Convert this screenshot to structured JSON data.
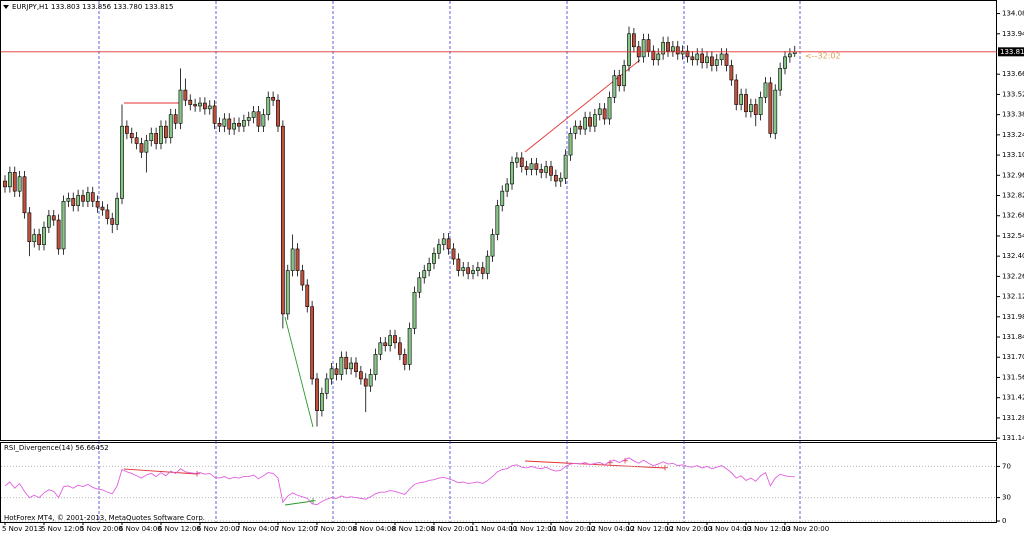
{
  "header": "EURJPY,H1  133.803 133.856 133.780 133.815",
  "timer": "<--32:02",
  "footer": "HotForex MT4, © 2001-2013, MetaQuotes Software Corp.",
  "chart_data": {
    "type": "candlestick",
    "open": [
      132.92,
      132.88,
      132.98,
      132.85,
      132.95,
      132.7,
      132.5,
      132.55,
      132.48,
      132.6,
      132.68,
      132.65,
      132.45,
      132.78,
      132.8,
      132.75,
      132.82,
      132.78,
      132.84,
      132.78,
      132.74,
      132.72,
      132.66,
      132.62,
      132.8,
      133.3,
      133.25,
      133.22,
      133.18,
      133.12,
      133.2,
      133.25,
      133.18,
      133.3,
      133.22,
      133.38,
      133.32,
      133.55,
      133.48,
      133.45,
      133.44,
      133.46,
      133.42,
      133.44,
      133.32,
      133.3,
      133.35,
      133.28,
      133.32,
      133.3,
      133.34,
      133.36,
      133.4,
      133.3,
      133.38,
      133.5,
      133.48,
      133.3,
      132.0,
      132.3,
      132.45,
      132.3,
      132.2,
      132.05,
      131.55,
      131.33,
      131.45,
      131.55,
      131.62,
      131.58,
      131.7,
      131.62,
      131.66,
      131.6,
      131.55,
      131.5,
      131.58,
      131.72,
      131.8,
      131.78,
      131.85,
      131.8,
      131.72,
      131.65,
      131.9,
      132.15,
      132.25,
      132.3,
      132.35,
      132.42,
      132.48,
      132.52,
      132.45,
      132.38,
      132.3,
      132.32,
      132.28,
      132.3,
      132.32,
      132.28,
      132.4,
      132.55,
      132.75,
      132.85,
      132.9,
      133.05,
      133.08,
      133.02,
      133.0,
      133.04,
      133.0,
      132.98,
      133.02,
      132.96,
      132.92,
      132.94,
      133.1,
      133.25,
      133.3,
      133.28,
      133.36,
      133.3,
      133.38,
      133.42,
      133.35,
      133.5,
      133.65,
      133.58,
      133.72,
      133.94,
      133.85,
      133.78,
      133.9,
      133.82,
      133.76,
      133.8,
      133.88,
      133.82,
      133.85,
      133.8,
      133.82,
      133.78,
      133.76,
      133.8,
      133.74,
      133.78,
      133.72,
      133.76,
      133.8,
      133.72,
      133.62,
      133.45,
      133.52,
      133.4,
      133.45,
      133.38,
      133.5,
      133.6,
      133.25,
      133.55,
      133.7,
      133.78,
      133.803
    ],
    "high": [
      132.96,
      133.02,
      133.02,
      132.99,
      132.99,
      132.74,
      132.59,
      132.59,
      132.64,
      132.72,
      132.72,
      132.69,
      132.82,
      132.84,
      132.84,
      132.86,
      132.86,
      132.88,
      132.88,
      132.82,
      132.78,
      132.76,
      132.7,
      132.84,
      133.45,
      133.34,
      133.29,
      133.26,
      133.22,
      133.24,
      133.29,
      133.29,
      133.34,
      133.34,
      133.42,
      133.42,
      133.7,
      133.63,
      133.52,
      133.49,
      133.5,
      133.5,
      133.48,
      133.48,
      133.36,
      133.39,
      133.39,
      133.36,
      133.36,
      133.38,
      133.4,
      133.44,
      133.44,
      133.42,
      133.54,
      133.54,
      133.52,
      133.34,
      132.34,
      132.55,
      132.49,
      132.34,
      132.24,
      132.09,
      131.59,
      131.49,
      131.59,
      131.66,
      131.66,
      131.74,
      131.74,
      131.7,
      131.7,
      131.64,
      131.59,
      131.62,
      131.76,
      131.84,
      131.84,
      131.89,
      131.89,
      131.84,
      131.76,
      131.94,
      132.19,
      132.29,
      132.34,
      132.39,
      132.46,
      132.52,
      132.56,
      132.56,
      132.49,
      132.42,
      132.36,
      132.36,
      132.34,
      132.36,
      132.36,
      132.44,
      132.59,
      132.79,
      132.89,
      132.94,
      133.09,
      133.12,
      133.12,
      133.06,
      133.08,
      133.08,
      133.04,
      133.06,
      133.06,
      133.0,
      132.98,
      133.14,
      133.29,
      133.34,
      133.34,
      133.4,
      133.4,
      133.42,
      133.46,
      133.46,
      133.54,
      133.69,
      133.69,
      133.76,
      133.99,
      133.98,
      133.89,
      133.94,
      133.94,
      133.86,
      133.84,
      133.92,
      133.92,
      133.89,
      133.89,
      133.86,
      133.86,
      133.82,
      133.84,
      133.84,
      133.82,
      133.82,
      133.8,
      133.84,
      133.84,
      133.76,
      133.66,
      133.56,
      133.56,
      133.49,
      133.49,
      133.54,
      133.64,
      133.64,
      133.59,
      133.74,
      133.82,
      133.84,
      133.856
    ],
    "low": [
      132.84,
      132.84,
      132.81,
      132.81,
      132.66,
      132.4,
      132.46,
      132.44,
      132.44,
      132.56,
      132.61,
      132.41,
      132.41,
      132.74,
      132.71,
      132.71,
      132.74,
      132.74,
      132.74,
      132.7,
      132.68,
      132.62,
      132.56,
      132.58,
      132.76,
      133.21,
      133.18,
      133.14,
      133.08,
      132.98,
      133.16,
      133.14,
      133.14,
      133.18,
      133.18,
      133.28,
      133.28,
      133.44,
      133.41,
      133.4,
      133.4,
      133.38,
      133.38,
      133.28,
      133.26,
      133.26,
      133.24,
      133.24,
      133.26,
      133.26,
      133.3,
      133.32,
      133.26,
      133.26,
      133.34,
      133.44,
      133.26,
      131.9,
      131.96,
      132.26,
      132.26,
      132.16,
      132.01,
      131.51,
      131.22,
      131.29,
      131.41,
      131.51,
      131.54,
      131.54,
      131.58,
      131.58,
      131.56,
      131.51,
      131.32,
      131.46,
      131.54,
      131.68,
      131.74,
      131.74,
      131.76,
      131.68,
      131.61,
      131.61,
      131.86,
      132.11,
      132.21,
      132.26,
      132.31,
      132.38,
      132.44,
      132.41,
      132.34,
      132.26,
      132.26,
      132.24,
      132.24,
      132.26,
      132.24,
      132.24,
      132.36,
      132.51,
      132.71,
      132.81,
      132.86,
      133.01,
      132.98,
      132.96,
      132.96,
      132.96,
      132.94,
      132.94,
      132.92,
      132.88,
      132.88,
      132.9,
      133.06,
      133.21,
      133.24,
      133.24,
      133.26,
      133.26,
      133.34,
      133.31,
      133.31,
      133.46,
      133.54,
      133.54,
      133.68,
      133.81,
      133.74,
      133.74,
      133.78,
      133.72,
      133.72,
      133.76,
      133.78,
      133.78,
      133.76,
      133.76,
      133.74,
      133.72,
      133.72,
      133.7,
      133.7,
      133.68,
      133.68,
      133.72,
      133.68,
      133.58,
      133.41,
      133.41,
      133.36,
      133.36,
      133.3,
      133.34,
      133.46,
      133.22,
      133.21,
      133.51,
      133.66,
      133.74,
      133.78
    ],
    "close": [
      132.88,
      132.98,
      132.85,
      132.95,
      132.7,
      132.5,
      132.55,
      132.48,
      132.6,
      132.68,
      132.65,
      132.45,
      132.78,
      132.8,
      132.75,
      132.82,
      132.78,
      132.84,
      132.78,
      132.74,
      132.72,
      132.66,
      132.62,
      132.8,
      133.3,
      133.25,
      133.22,
      133.18,
      133.12,
      133.2,
      133.25,
      133.18,
      133.3,
      133.22,
      133.38,
      133.32,
      133.55,
      133.48,
      133.45,
      133.44,
      133.46,
      133.42,
      133.44,
      133.32,
      133.3,
      133.35,
      133.28,
      133.32,
      133.3,
      133.34,
      133.36,
      133.4,
      133.3,
      133.38,
      133.5,
      133.48,
      133.3,
      132.0,
      132.3,
      132.45,
      132.3,
      132.2,
      132.05,
      131.55,
      131.33,
      131.45,
      131.55,
      131.62,
      131.58,
      131.7,
      131.62,
      131.66,
      131.6,
      131.55,
      131.5,
      131.58,
      131.72,
      131.8,
      131.78,
      131.85,
      131.8,
      131.72,
      131.65,
      131.9,
      132.15,
      132.25,
      132.3,
      132.35,
      132.42,
      132.48,
      132.52,
      132.45,
      132.38,
      132.3,
      132.32,
      132.28,
      132.3,
      132.32,
      132.28,
      132.4,
      132.55,
      132.75,
      132.85,
      132.9,
      133.05,
      133.08,
      133.02,
      133.0,
      133.04,
      133.0,
      132.98,
      133.02,
      132.96,
      132.92,
      132.94,
      133.1,
      133.25,
      133.3,
      133.28,
      133.36,
      133.3,
      133.38,
      133.42,
      133.35,
      133.5,
      133.65,
      133.58,
      133.72,
      133.94,
      133.85,
      133.78,
      133.9,
      133.82,
      133.76,
      133.8,
      133.88,
      133.82,
      133.85,
      133.8,
      133.82,
      133.78,
      133.76,
      133.8,
      133.74,
      133.78,
      133.72,
      133.76,
      133.8,
      133.72,
      133.62,
      133.45,
      133.52,
      133.4,
      133.45,
      133.38,
      133.5,
      133.6,
      133.25,
      133.55,
      133.7,
      133.78,
      133.8,
      133.815
    ],
    "up_color": "#86c586",
    "down_color": "#c0503c",
    "ylim": [
      131.12,
      134.16
    ],
    "yticks": [
      {
        "value": 134.08,
        "label": "134.080"
      },
      {
        "value": 133.94,
        "label": "133.940"
      },
      {
        "value": 133.66,
        "label": "133.660"
      },
      {
        "value": 133.52,
        "label": "133.520"
      },
      {
        "value": 133.38,
        "label": "133.380"
      },
      {
        "value": 133.24,
        "label": "133.240"
      },
      {
        "value": 133.1,
        "label": "133.100"
      },
      {
        "value": 132.96,
        "label": "132.960"
      },
      {
        "value": 132.82,
        "label": "132.820"
      },
      {
        "value": 132.68,
        "label": "132.680"
      },
      {
        "value": 132.54,
        "label": "132.540"
      },
      {
        "value": 132.4,
        "label": "132.400"
      },
      {
        "value": 132.26,
        "label": "132.260"
      },
      {
        "value": 132.12,
        "label": "132.120"
      },
      {
        "value": 131.98,
        "label": "131.980"
      },
      {
        "value": 131.84,
        "label": "131.840"
      },
      {
        "value": 131.7,
        "label": "131.700"
      },
      {
        "value": 131.56,
        "label": "131.560"
      },
      {
        "value": 131.42,
        "label": "131.420"
      },
      {
        "value": 131.28,
        "label": "131.280"
      },
      {
        "value": 131.14,
        "label": "131.140"
      }
    ],
    "bid": {
      "value": 133.815,
      "label": "133.815",
      "color": "#e03030"
    },
    "xticks": [
      {
        "value": 0,
        "label": "5 Nov 2013"
      },
      {
        "value": 8,
        "label": "5 Nov 12:00"
      },
      {
        "value": 16,
        "label": "5 Nov 20:00"
      },
      {
        "value": 24,
        "label": "6 Nov 04:00"
      },
      {
        "value": 32,
        "label": "6 Nov 12:00"
      },
      {
        "value": 40,
        "label": "6 Nov 20:00"
      },
      {
        "value": 48,
        "label": "7 Nov 04:00"
      },
      {
        "value": 56,
        "label": "7 Nov 12:00"
      },
      {
        "value": 64,
        "label": "7 Nov 20:00"
      },
      {
        "value": 72,
        "label": "8 Nov 04:00"
      },
      {
        "value": 80,
        "label": "8 Nov 12:00"
      },
      {
        "value": 88,
        "label": "8 Nov 20:00"
      },
      {
        "value": 96,
        "label": "11 Nov 04:00"
      },
      {
        "value": 104,
        "label": "11 Nov 12:00"
      },
      {
        "value": 112,
        "label": "11 Nov 20:00"
      },
      {
        "value": 120,
        "label": "12 Nov 04:00"
      },
      {
        "value": 128,
        "label": "12 Nov 12:00"
      },
      {
        "value": 136,
        "label": "12 Nov 20:00"
      },
      {
        "value": 144,
        "label": "13 Nov 04:00"
      },
      {
        "value": 152,
        "label": "13 Nov 12:00"
      },
      {
        "value": 160,
        "label": "13 Nov 20:00"
      }
    ],
    "indicator": {
      "type": "line",
      "title": "RSI_Divergence(14) 56.66452",
      "color": "#e060e0",
      "ylim": [
        0,
        100
      ],
      "yticks": [
        70,
        30,
        0
      ],
      "values": [
        45,
        50,
        42,
        48,
        38,
        30,
        33,
        30,
        36,
        40,
        38,
        30,
        44,
        45,
        42,
        46,
        44,
        47,
        43,
        41,
        40,
        37,
        35,
        45,
        66,
        63,
        61,
        58,
        55,
        59,
        61,
        57,
        62,
        58,
        64,
        61,
        67,
        63,
        62,
        61,
        62,
        60,
        61,
        56,
        55,
        57,
        54,
        56,
        55,
        57,
        57,
        59,
        54,
        58,
        62,
        61,
        55,
        24,
        32,
        36,
        33,
        31,
        29,
        22,
        21,
        25,
        28,
        30,
        29,
        32,
        30,
        31,
        30,
        29,
        28,
        31,
        35,
        37,
        37,
        39,
        38,
        36,
        34,
        41,
        47,
        49,
        50,
        52,
        53,
        55,
        56,
        54,
        52,
        49,
        50,
        48,
        49,
        50,
        48,
        52,
        57,
        63,
        66,
        67,
        71,
        72,
        69,
        68,
        70,
        68,
        67,
        69,
        66,
        64,
        65,
        70,
        73,
        74,
        73,
        75,
        72,
        74,
        75,
        72,
        76,
        78,
        75,
        78,
        81,
        77,
        74,
        78,
        74,
        71,
        73,
        76,
        73,
        74,
        71,
        72,
        70,
        69,
        71,
        68,
        70,
        67,
        69,
        71,
        67,
        62,
        55,
        58,
        52,
        55,
        51,
        58,
        62,
        45,
        55,
        60,
        58,
        57,
        56.66452
      ]
    }
  }
}
